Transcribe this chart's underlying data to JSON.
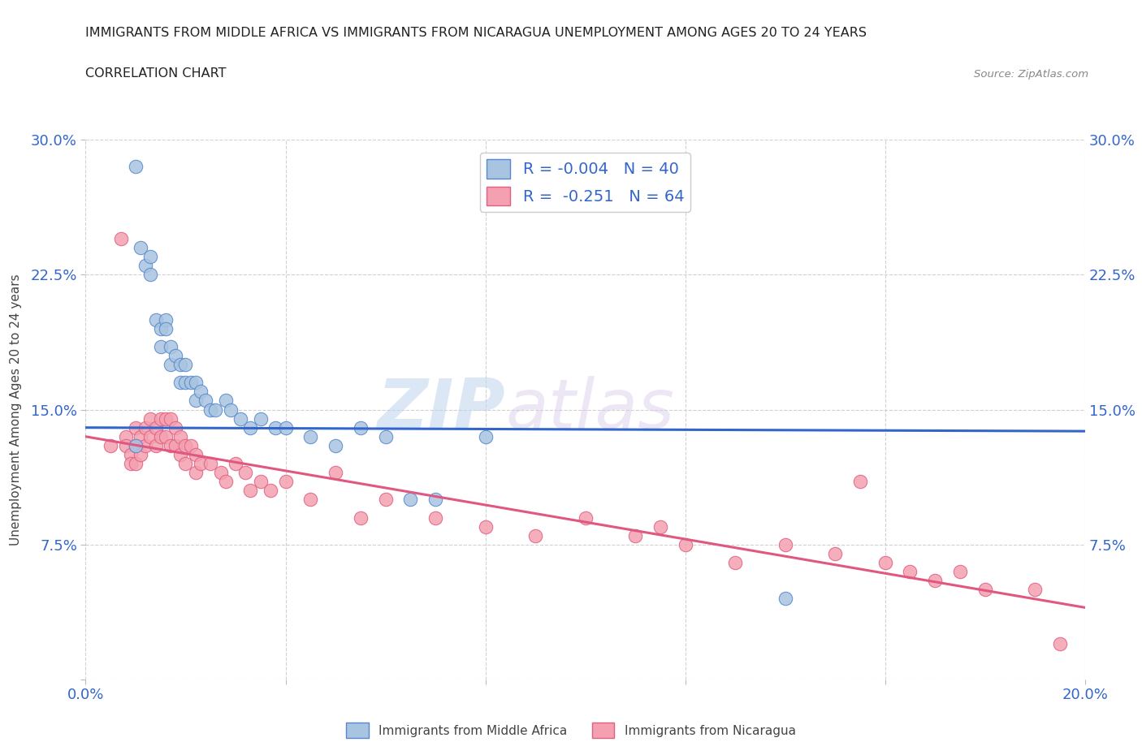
{
  "title_line1": "IMMIGRANTS FROM MIDDLE AFRICA VS IMMIGRANTS FROM NICARAGUA UNEMPLOYMENT AMONG AGES 20 TO 24 YEARS",
  "title_line2": "CORRELATION CHART",
  "source": "Source: ZipAtlas.com",
  "ylabel": "Unemployment Among Ages 20 to 24 years",
  "xlim": [
    0.0,
    0.2
  ],
  "ylim": [
    0.0,
    0.3
  ],
  "xticks": [
    0.0,
    0.04,
    0.08,
    0.12,
    0.16,
    0.2
  ],
  "yticks": [
    0.0,
    0.075,
    0.15,
    0.225,
    0.3
  ],
  "xticklabels": [
    "0.0%",
    "",
    "",
    "",
    "",
    "20.0%"
  ],
  "yticklabels": [
    "",
    "7.5%",
    "15.0%",
    "22.5%",
    "30.0%"
  ],
  "watermark_zip": "ZIP",
  "watermark_atlas": "atlas",
  "blue_label": "Immigrants from Middle Africa",
  "pink_label": "Immigrants from Nicaragua",
  "blue_R": "-0.004",
  "blue_N": "40",
  "pink_R": "-0.251",
  "pink_N": "64",
  "blue_color": "#a8c4e0",
  "pink_color": "#f4a0b0",
  "blue_edge_color": "#5588cc",
  "pink_edge_color": "#e06080",
  "blue_line_color": "#3366cc",
  "pink_line_color": "#e05880",
  "background_color": "#ffffff",
  "blue_scatter_x": [
    0.01,
    0.01,
    0.011,
    0.012,
    0.013,
    0.013,
    0.014,
    0.015,
    0.015,
    0.016,
    0.016,
    0.017,
    0.017,
    0.018,
    0.019,
    0.019,
    0.02,
    0.02,
    0.021,
    0.022,
    0.022,
    0.023,
    0.024,
    0.025,
    0.026,
    0.028,
    0.029,
    0.031,
    0.033,
    0.035,
    0.038,
    0.04,
    0.045,
    0.05,
    0.055,
    0.06,
    0.065,
    0.07,
    0.14,
    0.08
  ],
  "blue_scatter_y": [
    0.285,
    0.13,
    0.24,
    0.23,
    0.235,
    0.225,
    0.2,
    0.195,
    0.185,
    0.2,
    0.195,
    0.185,
    0.175,
    0.18,
    0.175,
    0.165,
    0.175,
    0.165,
    0.165,
    0.165,
    0.155,
    0.16,
    0.155,
    0.15,
    0.15,
    0.155,
    0.15,
    0.145,
    0.14,
    0.145,
    0.14,
    0.14,
    0.135,
    0.13,
    0.14,
    0.135,
    0.1,
    0.1,
    0.045,
    0.135
  ],
  "pink_scatter_x": [
    0.005,
    0.007,
    0.008,
    0.008,
    0.009,
    0.009,
    0.01,
    0.01,
    0.01,
    0.011,
    0.011,
    0.012,
    0.012,
    0.013,
    0.013,
    0.014,
    0.014,
    0.015,
    0.015,
    0.016,
    0.016,
    0.017,
    0.017,
    0.018,
    0.018,
    0.019,
    0.019,
    0.02,
    0.02,
    0.021,
    0.022,
    0.022,
    0.023,
    0.025,
    0.027,
    0.028,
    0.03,
    0.032,
    0.033,
    0.035,
    0.037,
    0.04,
    0.045,
    0.05,
    0.055,
    0.06,
    0.07,
    0.08,
    0.09,
    0.1,
    0.11,
    0.115,
    0.12,
    0.13,
    0.14,
    0.15,
    0.16,
    0.17,
    0.18,
    0.19,
    0.155,
    0.165,
    0.175,
    0.195
  ],
  "pink_scatter_y": [
    0.13,
    0.245,
    0.135,
    0.13,
    0.125,
    0.12,
    0.14,
    0.13,
    0.12,
    0.135,
    0.125,
    0.14,
    0.13,
    0.145,
    0.135,
    0.14,
    0.13,
    0.145,
    0.135,
    0.145,
    0.135,
    0.145,
    0.13,
    0.14,
    0.13,
    0.135,
    0.125,
    0.13,
    0.12,
    0.13,
    0.125,
    0.115,
    0.12,
    0.12,
    0.115,
    0.11,
    0.12,
    0.115,
    0.105,
    0.11,
    0.105,
    0.11,
    0.1,
    0.115,
    0.09,
    0.1,
    0.09,
    0.085,
    0.08,
    0.09,
    0.08,
    0.085,
    0.075,
    0.065,
    0.075,
    0.07,
    0.065,
    0.055,
    0.05,
    0.05,
    0.11,
    0.06,
    0.06,
    0.02
  ],
  "blue_line_x": [
    0.0,
    0.2
  ],
  "blue_line_y": [
    0.14,
    0.138
  ],
  "pink_line_x": [
    0.0,
    0.2
  ],
  "pink_line_y": [
    0.135,
    0.04
  ]
}
